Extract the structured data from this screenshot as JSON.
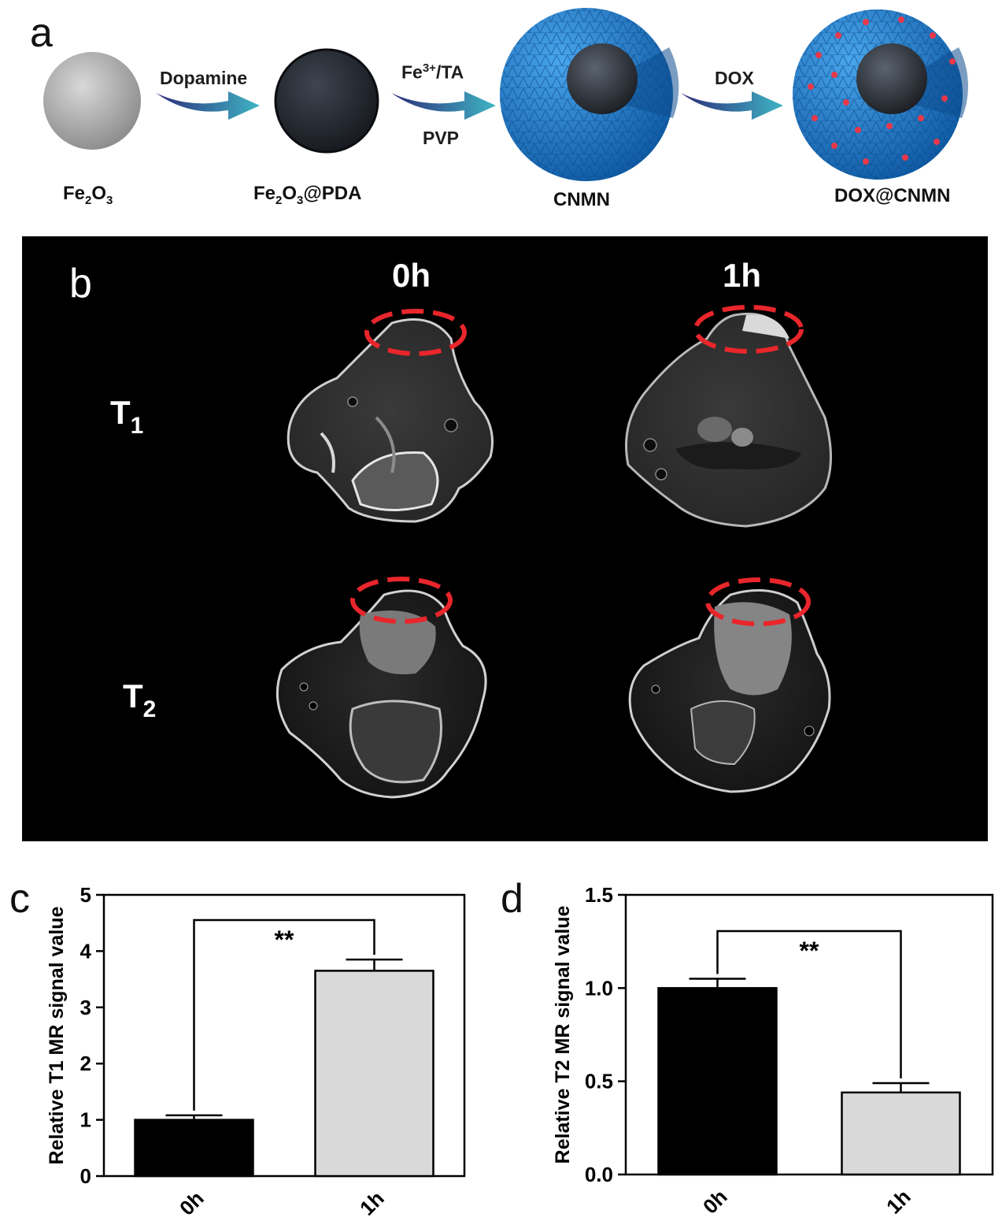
{
  "panels": {
    "a": {
      "letter": "a"
    },
    "b": {
      "letter": "b"
    },
    "c": {
      "letter": "c"
    },
    "d": {
      "letter": "d"
    }
  },
  "synthesis": {
    "steps": [
      {
        "label_main": "Fe",
        "label_sub1": "2",
        "label_mid": "O",
        "label_sub2": "3",
        "label_tail": ""
      },
      {
        "label_main": "Fe",
        "label_sub1": "2",
        "label_mid": "O",
        "label_sub2": "3",
        "label_tail": "@PDA"
      },
      {
        "label": "CNMN"
      },
      {
        "label": "DOX@CNMN"
      }
    ],
    "arrows": [
      {
        "top": "Dopamine",
        "bottom": ""
      },
      {
        "top_base": "Fe",
        "top_sup": "3+",
        "top_tail": "/TA",
        "bottom": "PVP"
      },
      {
        "top": "DOX",
        "bottom": ""
      }
    ],
    "colors": {
      "shell": "#1f7fd1",
      "arrow": "#3fb5c4",
      "drug": "#e8384a"
    }
  },
  "mri": {
    "columns": [
      "0h",
      "1h"
    ],
    "rows": [
      {
        "base": "T",
        "sub": "1"
      },
      {
        "base": "T",
        "sub": "2"
      }
    ],
    "roi_color": "#e8262b"
  },
  "chart_data": [
    {
      "type": "bar",
      "categories": [
        "0h",
        "1h"
      ],
      "values": [
        1.0,
        3.65
      ],
      "errors": [
        0.08,
        0.2
      ],
      "ylabel": "Relative T1 MR signal value",
      "ylim": [
        0,
        5
      ],
      "yticks": [
        "0",
        "1",
        "2",
        "3",
        "4",
        "5"
      ],
      "significance": "**",
      "colors": [
        "#000000",
        "#d9d9d9"
      ]
    },
    {
      "type": "bar",
      "categories": [
        "0h",
        "1h"
      ],
      "values": [
        1.0,
        0.44
      ],
      "errors": [
        0.05,
        0.05
      ],
      "ylabel": "Relative T2 MR signal value",
      "ylim": [
        0,
        1.5
      ],
      "yticks": [
        "0.0",
        "0.5",
        "1.0",
        "1.5"
      ],
      "significance": "**",
      "colors": [
        "#000000",
        "#d9d9d9"
      ]
    }
  ]
}
